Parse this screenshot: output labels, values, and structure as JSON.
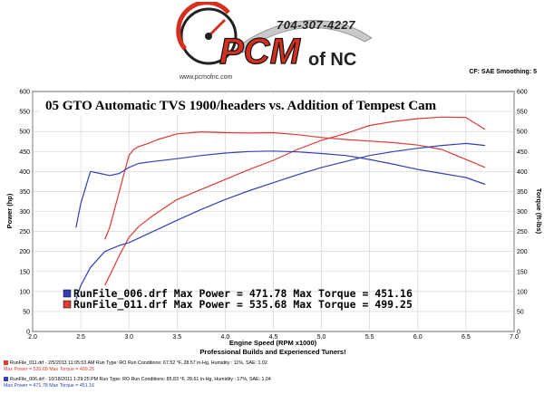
{
  "header": {
    "logo_main": "PCM",
    "logo_suffix": "of NC",
    "phone": "704-307-4227",
    "url": "www.pcmofnc.com",
    "settings": "CF: SAE   Smoothing: 5"
  },
  "footer": {
    "run_a_line1": "RunFile_011.drf - 2/5/2013 11:05:53 AM  Run Type: RO  Run Conditions: 67.52 °F, 28.57 in-Hg,  Humidity : 11%, SAE: 1.02",
    "run_a_line2": "Max Power = 535.68  Max Torque = 499.25",
    "run_b_line1": "RunFile_006.drf - 10/18/2011 1:29:25 PM  Run Type: RO  Run Conditions: 85.83 °F, 28.61 in-Hg,  Humidity :  17%, SAE: 1.04",
    "run_b_line2": "Max Power = 471.78  Max Torque = 451.16"
  },
  "colors": {
    "red": "#dd3b33",
    "blue": "#3340b5",
    "plot_bg": "#ffffff",
    "page_bg": "#ffffff"
  },
  "chart_data": {
    "type": "line",
    "title": "05 GTO Automatic TVS 1900/headers vs. Addition of Tempest Cam",
    "subtitle": "Professional Builds and Experienced Tuners!",
    "xlabel": "Engine Speed (RPM x1000)",
    "ylabel_left": "Power (hp)",
    "ylabel_right": "Torque (ft-lbs)",
    "xlim": [
      2.0,
      7.0
    ],
    "ylim_left": [
      0,
      600
    ],
    "ylim_right": [
      0,
      600
    ],
    "xticks": [
      "2.0",
      "2.5",
      "3.0",
      "3.5",
      "4.0",
      "4.5",
      "5.0",
      "5.5",
      "6.0",
      "6.5",
      "7.0"
    ],
    "yticks_left": [
      "0",
      "50",
      "100",
      "150",
      "200",
      "250",
      "300",
      "350",
      "400",
      "450",
      "500",
      "550",
      "600"
    ],
    "yticks_right": [
      "0",
      "50",
      "100",
      "150",
      "200",
      "250",
      "300",
      "350",
      "400",
      "450",
      "500",
      "550",
      "600"
    ],
    "grid": true,
    "legend_position": "bottom-left",
    "legend": [
      {
        "label": "RunFile_006.drf Max Power = 471.78    Max Torque = 451.16",
        "color": "#3340b5"
      },
      {
        "label": "RunFile_011.drf Max Power = 535.68    Max Torque = 499.25",
        "color": "#dd3b33"
      }
    ],
    "series": [
      {
        "color": "#dd3b33",
        "x": [
          2.75,
          2.8,
          2.9,
          3.0,
          3.1,
          3.25,
          3.5,
          3.75,
          4.0,
          4.25,
          4.5,
          4.75,
          5.0,
          5.25,
          5.5,
          5.75,
          6.0,
          6.25,
          6.5,
          6.7
        ],
        "values": [
          115,
          140,
          190,
          235,
          262,
          290,
          330,
          355,
          380,
          405,
          428,
          455,
          478,
          495,
          515,
          525,
          532,
          536,
          535,
          505
        ]
      },
      {
        "color": "#dd3b33",
        "x": [
          2.75,
          2.8,
          2.9,
          3.0,
          3.05,
          3.1,
          3.2,
          3.3,
          3.5,
          3.75,
          4.0,
          4.25,
          4.5,
          4.75,
          5.0,
          5.25,
          5.5,
          5.75,
          6.0,
          6.25,
          6.5,
          6.7
        ],
        "values": [
          230,
          260,
          350,
          440,
          455,
          462,
          470,
          480,
          494,
          499,
          497,
          496,
          497,
          492,
          485,
          480,
          476,
          472,
          466,
          455,
          430,
          410
        ]
      },
      {
        "color": "#3340b5",
        "x": [
          2.45,
          2.5,
          2.6,
          2.75,
          2.9,
          3.0,
          3.25,
          3.5,
          3.75,
          4.0,
          4.25,
          4.5,
          4.75,
          5.0,
          5.25,
          5.5,
          5.75,
          6.0,
          6.25,
          6.5,
          6.7
        ],
        "values": [
          80,
          115,
          160,
          200,
          215,
          222,
          250,
          278,
          305,
          330,
          352,
          372,
          392,
          410,
          425,
          440,
          450,
          458,
          465,
          470,
          465
        ]
      },
      {
        "color": "#3340b5",
        "x": [
          2.45,
          2.5,
          2.6,
          2.7,
          2.8,
          2.9,
          3.0,
          3.1,
          3.25,
          3.5,
          3.75,
          4.0,
          4.25,
          4.5,
          4.75,
          5.0,
          5.25,
          5.5,
          5.75,
          6.0,
          6.25,
          6.5,
          6.7
        ],
        "values": [
          260,
          320,
          400,
          395,
          390,
          395,
          410,
          420,
          425,
          432,
          440,
          446,
          450,
          451,
          449,
          445,
          440,
          430,
          418,
          405,
          395,
          385,
          368
        ]
      }
    ]
  }
}
